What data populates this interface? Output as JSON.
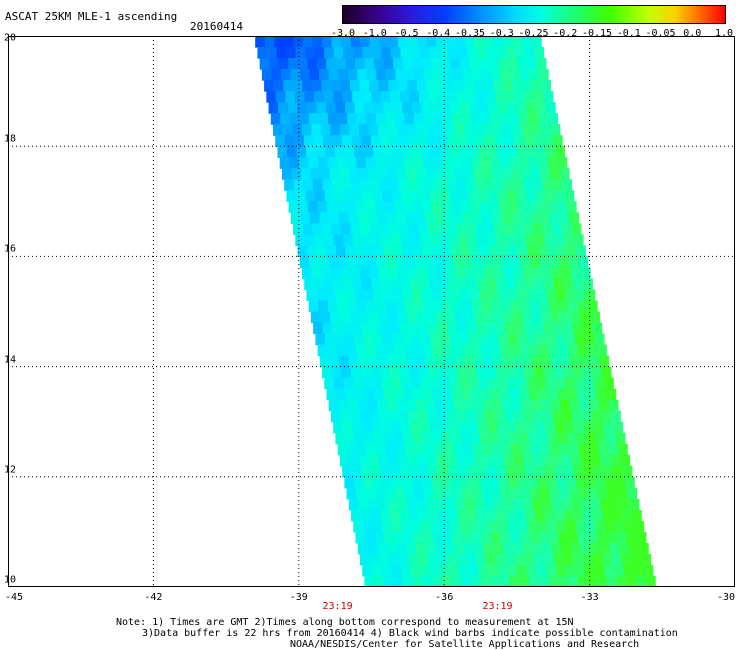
{
  "header": {
    "title": "ASCAT 25KM MLE-1 ascending",
    "date": "20160414"
  },
  "colorbar": {
    "labels": [
      "-3.0",
      "-1.0",
      "-0.5",
      "-0.4",
      "-0.35",
      "-0.3",
      "-0.25",
      "-0.2",
      "-0.15",
      "-0.1",
      "-0.05",
      "0.0",
      "1.0"
    ]
  },
  "map": {
    "lat_labels": [
      "20",
      "18",
      "16",
      "14",
      "12",
      "10"
    ],
    "lon_labels": [
      "-45",
      "-42",
      "-39",
      "-36",
      "-33",
      "-30"
    ],
    "lat_values": [
      20,
      18,
      16,
      14,
      12,
      10
    ],
    "lon_values": [
      -45,
      -42,
      -39,
      -36,
      -33,
      -30
    ],
    "lat_range": [
      10,
      20
    ],
    "lon_range": [
      -45,
      -30
    ],
    "times": [
      "23:19",
      "23:19"
    ],
    "time_lons": [
      -38.2,
      -34.9
    ],
    "swath_corners": {
      "top_left": [
        -39.9,
        20
      ],
      "top_right": [
        -34.0,
        20
      ],
      "bottom_right": [
        -31.6,
        10
      ],
      "bottom_left": [
        -37.6,
        10
      ]
    },
    "field_description": "MLE-1 values mostly -0.30 to -0.20; lowest (about -0.4) near 19-20N, 39-37W; highest (about -0.15) near 10N, 33W"
  },
  "notes": {
    "line1": "Note: 1) Times are GMT 2)Times along bottom correspond to measurement at 15N",
    "line2": "3)Data buffer is 22 hrs from 20160414 4) Black wind barbs indicate possible contamination",
    "line3": "NOAA/NESDIS/Center for Satellite Applications and Research"
  },
  "colors": {
    "grid": "#000000",
    "time_label": "#d00000",
    "low": "#0040ff",
    "mid": "#00ffe0",
    "high": "#40ff00"
  }
}
